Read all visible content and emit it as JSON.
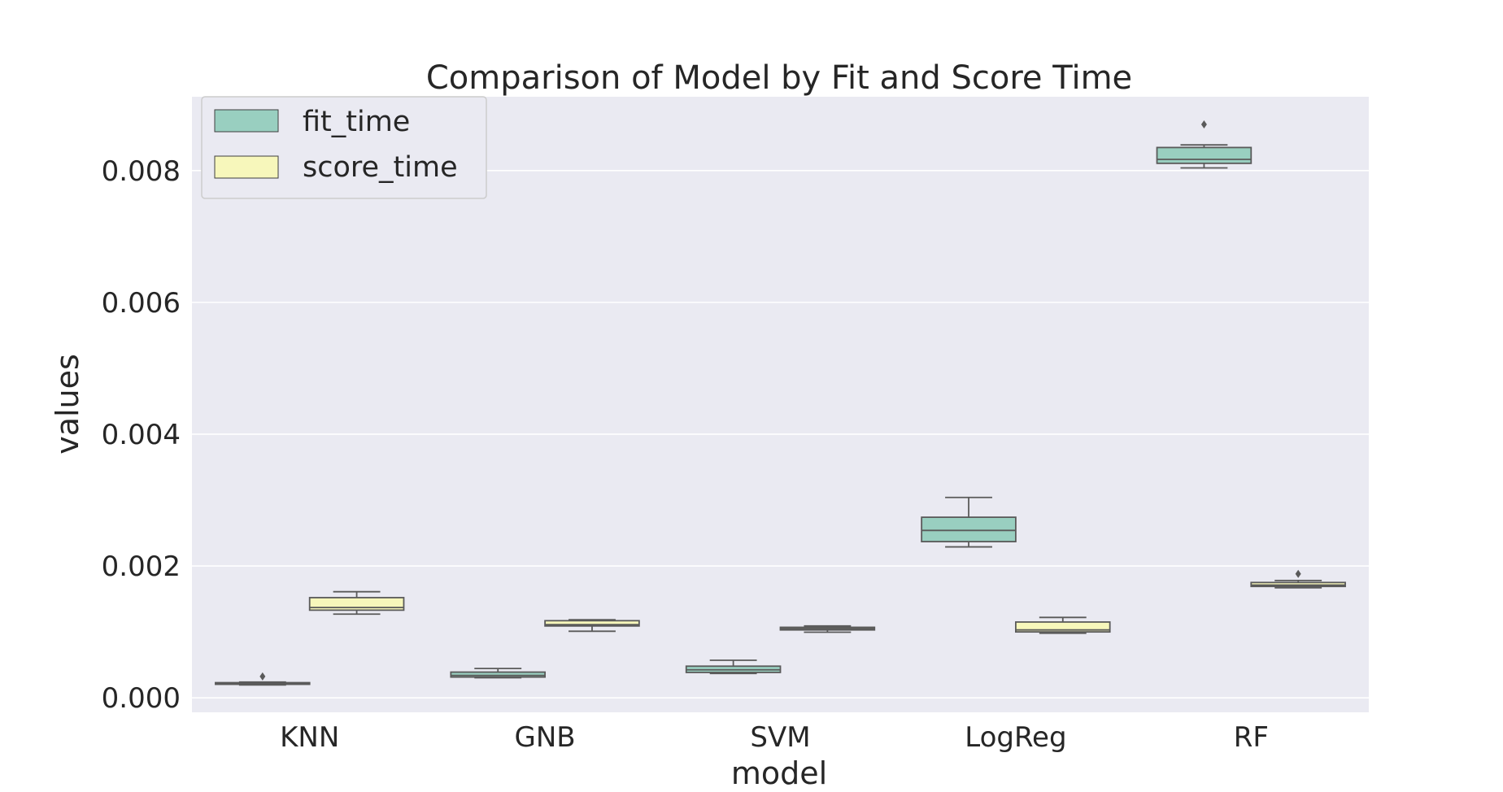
{
  "chart_data": {
    "type": "box",
    "title": "Comparison of Model by Fit and Score Time",
    "xlabel": "model",
    "ylabel": "values",
    "categories": [
      "KNN",
      "GNB",
      "SVM",
      "LogReg",
      "RF"
    ],
    "ylim": [
      -0.00022,
      0.00912
    ],
    "yticks": [
      0.0,
      0.002,
      0.004,
      0.006,
      0.008
    ],
    "ytick_labels": [
      "0.000",
      "0.002",
      "0.004",
      "0.006",
      "0.008"
    ],
    "grid": true,
    "legend": {
      "placement": "top-left",
      "entries": [
        {
          "label": "fit_time",
          "color": "#99cfc0"
        },
        {
          "label": "score_time",
          "color": "#f7f7bb"
        }
      ]
    },
    "series": [
      {
        "name": "fit_time",
        "color": "#99cfc0",
        "boxes": [
          {
            "min": 0.000195,
            "q1": 0.000205,
            "median": 0.000215,
            "q3": 0.00023,
            "max": 0.00024,
            "outliers": [
              0.000325
            ]
          },
          {
            "min": 0.000305,
            "q1": 0.000315,
            "median": 0.00034,
            "q3": 0.00039,
            "max": 0.000445,
            "outliers": []
          },
          {
            "min": 0.00037,
            "q1": 0.000385,
            "median": 0.000425,
            "q3": 0.00048,
            "max": 0.00057,
            "outliers": []
          },
          {
            "min": 0.00229,
            "q1": 0.00237,
            "median": 0.00254,
            "q3": 0.00274,
            "max": 0.00304,
            "outliers": []
          },
          {
            "min": 0.00804,
            "q1": 0.00811,
            "median": 0.00817,
            "q3": 0.00835,
            "max": 0.00839,
            "outliers": [
              0.0087
            ]
          }
        ]
      },
      {
        "name": "score_time",
        "color": "#f7f7bb",
        "boxes": [
          {
            "min": 0.00127,
            "q1": 0.00133,
            "median": 0.00137,
            "q3": 0.00152,
            "max": 0.00161,
            "outliers": []
          },
          {
            "min": 0.00101,
            "q1": 0.00109,
            "median": 0.00111,
            "q3": 0.00117,
            "max": 0.001185,
            "outliers": []
          },
          {
            "min": 0.000995,
            "q1": 0.00103,
            "median": 0.00105,
            "q3": 0.00107,
            "max": 0.00109,
            "outliers": []
          },
          {
            "min": 0.00098,
            "q1": 0.001,
            "median": 0.00103,
            "q3": 0.00115,
            "max": 0.00122,
            "outliers": []
          },
          {
            "min": 0.00167,
            "q1": 0.00169,
            "median": 0.00171,
            "q3": 0.00175,
            "max": 0.00178,
            "outliers": [
              0.00188
            ]
          }
        ]
      }
    ]
  }
}
